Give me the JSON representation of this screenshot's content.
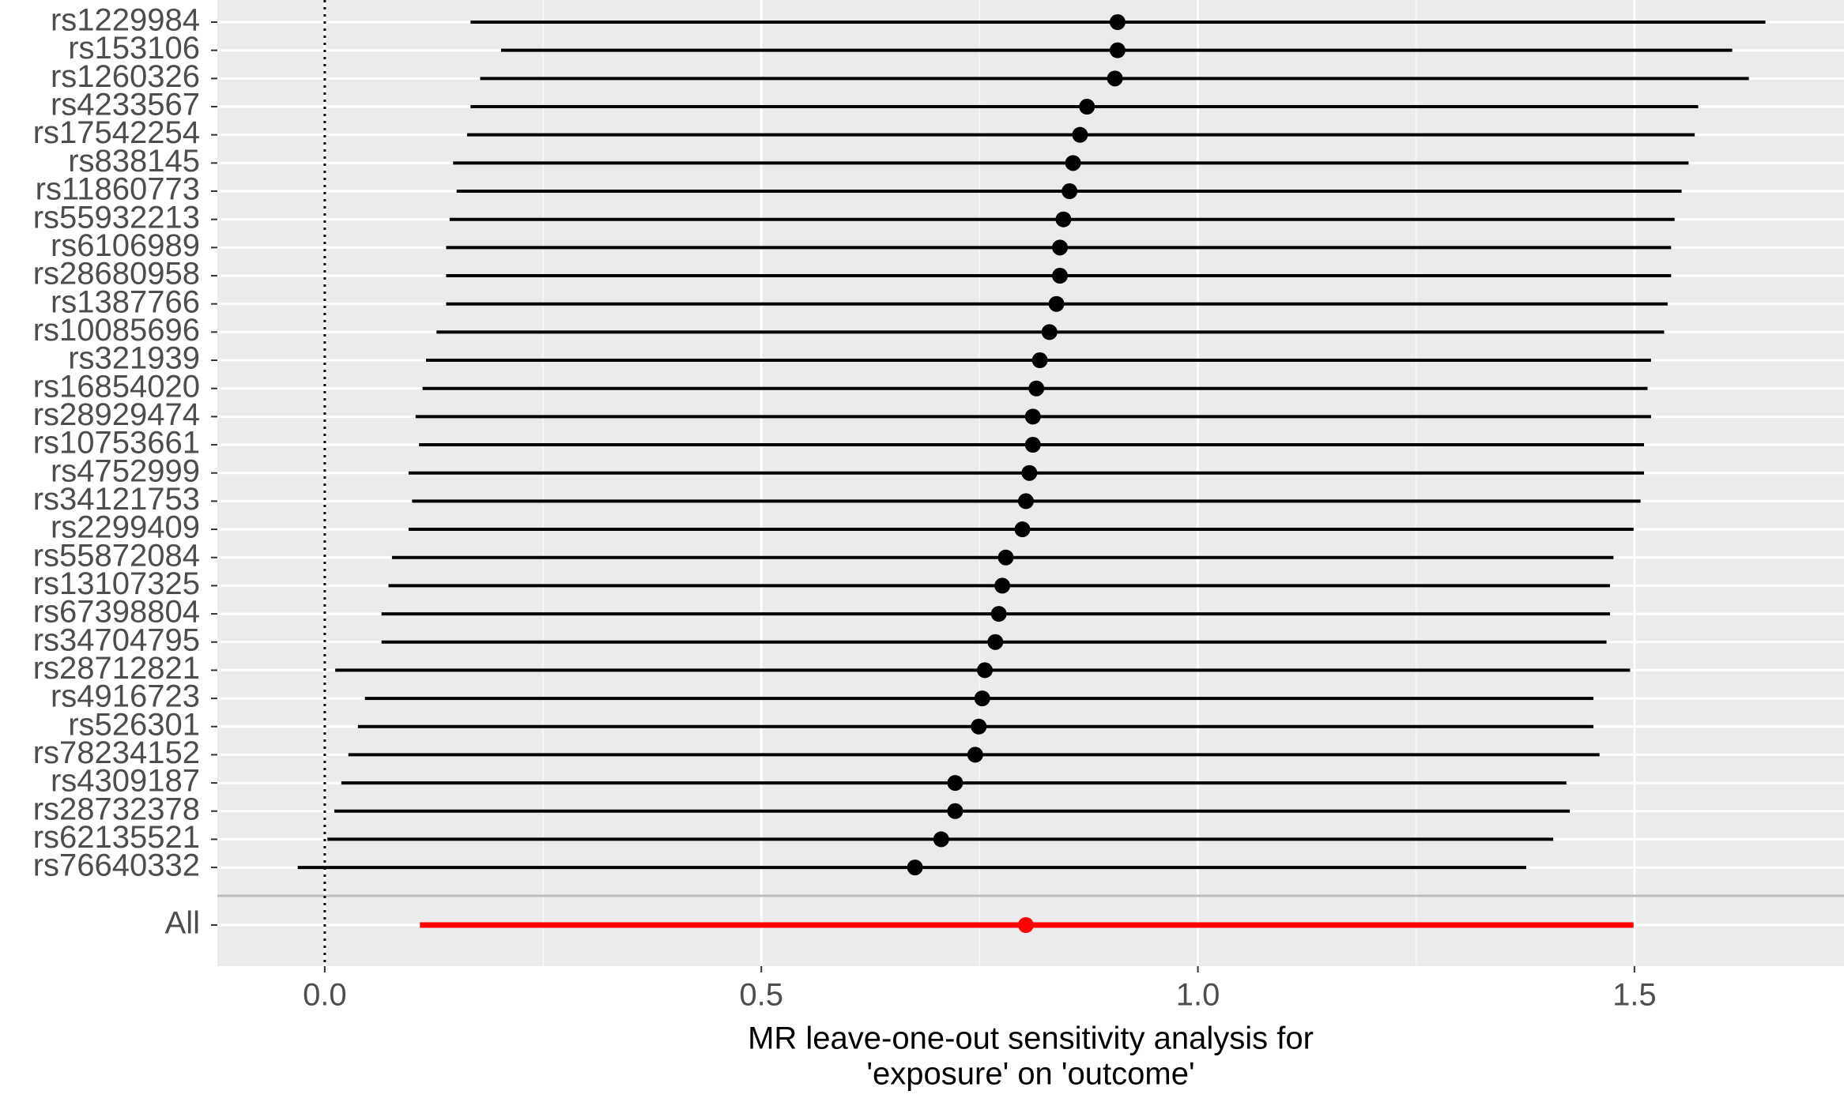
{
  "chart_data": {
    "type": "forest",
    "xlabel": [
      "MR leave-one-out sensitivity analysis for",
      "'exposure' on 'outcome'"
    ],
    "categories": [
      "rs1229984",
      "rs153106",
      "rs1260326",
      "rs4233567",
      "rs17542254",
      "rs838145",
      "rs11860773",
      "rs55932213",
      "rs6106989",
      "rs28680958",
      "rs1387766",
      "rs10085696",
      "rs321939",
      "rs16854020",
      "rs28929474",
      "rs10753661",
      "rs4752999",
      "rs34121753",
      "rs2299409",
      "rs55872084",
      "rs13107325",
      "rs67398804",
      "rs34704795",
      "rs28712821",
      "rs4916723",
      "rs526301",
      "rs78234152",
      "rs4309187",
      "rs28732378",
      "rs62135521",
      "rs76640332"
    ],
    "values": [
      0.908,
      0.908,
      0.905,
      0.873,
      0.865,
      0.857,
      0.853,
      0.846,
      0.842,
      0.842,
      0.838,
      0.83,
      0.819,
      0.815,
      0.811,
      0.811,
      0.807,
      0.803,
      0.799,
      0.78,
      0.776,
      0.772,
      0.768,
      0.756,
      0.753,
      0.749,
      0.745,
      0.722,
      0.722,
      0.706,
      0.676
    ],
    "lower": [
      0.167,
      0.202,
      0.178,
      0.167,
      0.163,
      0.147,
      0.151,
      0.143,
      0.139,
      0.139,
      0.139,
      0.128,
      0.116,
      0.112,
      0.104,
      0.108,
      0.096,
      0.1,
      0.096,
      0.077,
      0.073,
      0.065,
      0.065,
      0.012,
      0.046,
      0.038,
      0.027,
      0.019,
      0.011,
      0.003,
      -0.031
    ],
    "upper": [
      1.65,
      1.612,
      1.631,
      1.573,
      1.569,
      1.562,
      1.554,
      1.546,
      1.542,
      1.542,
      1.538,
      1.534,
      1.519,
      1.515,
      1.519,
      1.511,
      1.511,
      1.507,
      1.499,
      1.476,
      1.472,
      1.472,
      1.468,
      1.495,
      1.453,
      1.453,
      1.46,
      1.422,
      1.426,
      1.407,
      1.376
    ],
    "color": "#000000",
    "summary": {
      "label": "All",
      "value": 0.803,
      "lower": 0.109,
      "upper": 1.499,
      "color": "#ff0000"
    },
    "refline": 0,
    "xlim": [
      -0.123,
      1.74
    ],
    "xticks": [
      {
        "value": 0,
        "label": "0.0"
      },
      {
        "value": 0.5,
        "label": "0.5"
      },
      {
        "value": 1,
        "label": "1.0"
      },
      {
        "value": 1.5,
        "label": "1.5"
      }
    ],
    "grid": true
  }
}
